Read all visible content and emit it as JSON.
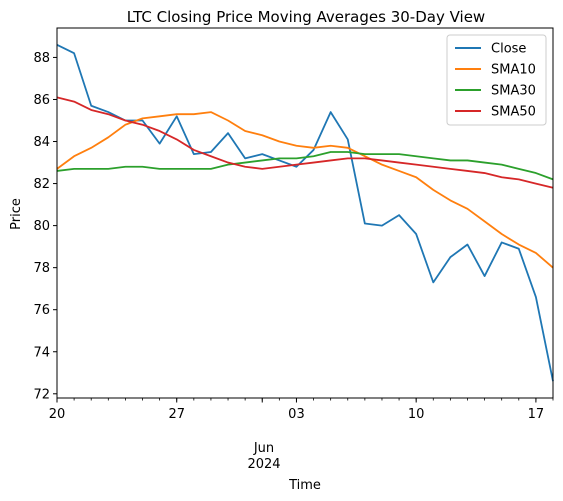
{
  "chart_data": {
    "type": "line",
    "title": "LTC Closing Price Moving Averages 30-Day View",
    "xlabel": "Time",
    "ylabel": "Price",
    "ylim": [
      71.8,
      89.4
    ],
    "yticks": [
      72,
      74,
      76,
      78,
      80,
      82,
      84,
      86,
      88
    ],
    "x_start": "2024-05-20",
    "x_end": "2024-06-18",
    "xticks": [
      {
        "date": "2024-05-20",
        "label": "20"
      },
      {
        "date": "2024-05-27",
        "label": "27"
      },
      {
        "date": "2024-06-03",
        "label": "03"
      },
      {
        "date": "2024-06-10",
        "label": "10"
      },
      {
        "date": "2024-06-17",
        "label": "17"
      }
    ],
    "month_label": "Jun",
    "year_label": "2024",
    "grid": false,
    "legend_position": "top-right",
    "x": [
      "2024-05-20",
      "2024-05-21",
      "2024-05-22",
      "2024-05-23",
      "2024-05-24",
      "2024-05-25",
      "2024-05-26",
      "2024-05-27",
      "2024-05-28",
      "2024-05-29",
      "2024-05-30",
      "2024-05-31",
      "2024-06-01",
      "2024-06-02",
      "2024-06-03",
      "2024-06-04",
      "2024-06-05",
      "2024-06-06",
      "2024-06-07",
      "2024-06-08",
      "2024-06-09",
      "2024-06-10",
      "2024-06-11",
      "2024-06-12",
      "2024-06-13",
      "2024-06-14",
      "2024-06-15",
      "2024-06-16",
      "2024-06-17",
      "2024-06-18"
    ],
    "series": [
      {
        "name": "Close",
        "color": "#1f77b4",
        "values": [
          88.6,
          88.2,
          85.7,
          85.4,
          85.0,
          85.0,
          83.9,
          85.2,
          83.4,
          83.5,
          84.4,
          83.2,
          83.4,
          83.1,
          82.8,
          83.6,
          85.4,
          84.1,
          80.1,
          80.0,
          80.5,
          79.6,
          77.3,
          78.5,
          79.1,
          77.6,
          79.2,
          78.9,
          76.6,
          72.6
        ]
      },
      {
        "name": "SMA10",
        "color": "#ff7f0e",
        "values": [
          82.7,
          83.3,
          83.7,
          84.2,
          84.8,
          85.1,
          85.2,
          85.3,
          85.3,
          85.4,
          85.0,
          84.5,
          84.3,
          84.0,
          83.8,
          83.7,
          83.8,
          83.7,
          83.3,
          82.9,
          82.6,
          82.3,
          81.7,
          81.2,
          80.8,
          80.2,
          79.6,
          79.1,
          78.7,
          78.0
        ]
      },
      {
        "name": "SMA30",
        "color": "#2ca02c",
        "values": [
          82.6,
          82.7,
          82.7,
          82.7,
          82.8,
          82.8,
          82.7,
          82.7,
          82.7,
          82.7,
          82.9,
          83.0,
          83.1,
          83.2,
          83.2,
          83.3,
          83.5,
          83.5,
          83.4,
          83.4,
          83.4,
          83.3,
          83.2,
          83.1,
          83.1,
          83.0,
          82.9,
          82.7,
          82.5,
          82.2
        ]
      },
      {
        "name": "SMA50",
        "color": "#d62728",
        "values": [
          86.1,
          85.9,
          85.5,
          85.3,
          85.0,
          84.8,
          84.5,
          84.1,
          83.6,
          83.3,
          83.0,
          82.8,
          82.7,
          82.8,
          82.9,
          83.0,
          83.1,
          83.2,
          83.2,
          83.1,
          83.0,
          82.9,
          82.8,
          82.7,
          82.6,
          82.5,
          82.3,
          82.2,
          82.0,
          81.8
        ]
      }
    ]
  }
}
